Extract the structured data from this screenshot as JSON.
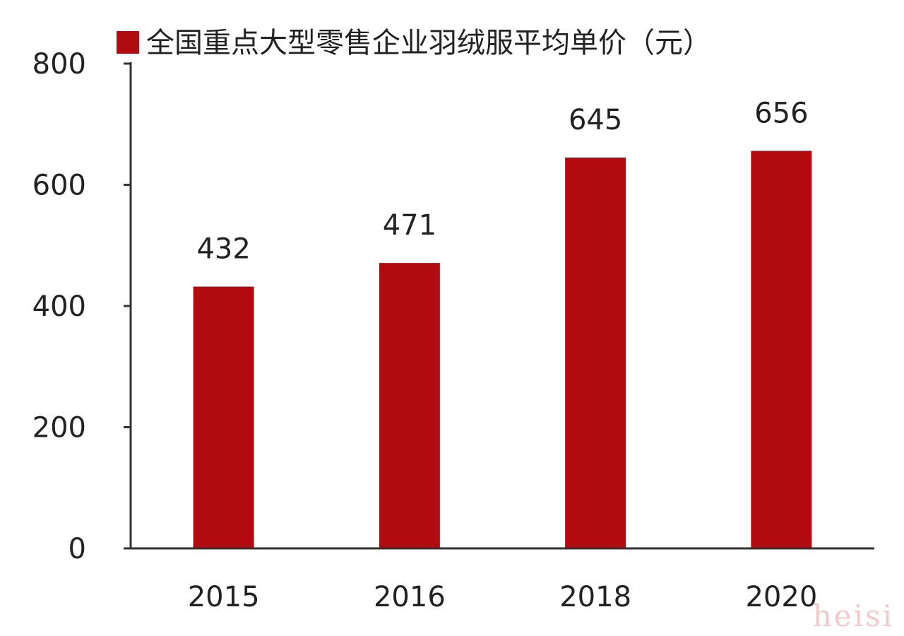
{
  "chart_data": {
    "type": "bar",
    "categories": [
      "2015",
      "2016",
      "2018",
      "2020"
    ],
    "series": [
      {
        "name": "全国重点大型零售企业羽绒服平均单价（元）",
        "values": [
          432,
          471,
          645,
          656
        ],
        "color": "#b10a0f"
      }
    ],
    "data_labels": [
      "432",
      "471",
      "645",
      "656"
    ],
    "y_ticks": [
      "0",
      "200",
      "400",
      "600",
      "800"
    ],
    "ylim": [
      0,
      800
    ],
    "grid": false,
    "legend": "top-left"
  },
  "watermark": "heisi",
  "colors": {
    "bar": "#b10a0f",
    "axis": "#333333",
    "text": "#222222",
    "watermark": "#f4c9cc"
  }
}
